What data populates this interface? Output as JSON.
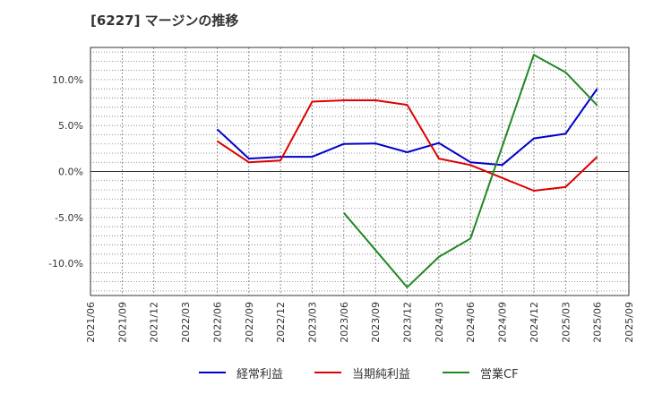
{
  "title": "[6227]  マージンの推移",
  "chart_data": {
    "type": "line",
    "title": "[6227]  マージンの推移",
    "xlabel": "",
    "ylabel": "",
    "x_ticks": [
      "2021/06",
      "2021/09",
      "2021/12",
      "2022/03",
      "2022/06",
      "2022/09",
      "2022/12",
      "2023/03",
      "2023/06",
      "2023/09",
      "2023/12",
      "2024/03",
      "2024/06",
      "2024/09",
      "2024/12",
      "2025/03",
      "2025/06",
      "2025/09"
    ],
    "y_ticks": [
      "10.0%",
      "5.0%",
      "0.0%",
      "-5.0%",
      "-10.0%"
    ],
    "y_tick_values": [
      10,
      5,
      0,
      -5,
      -10
    ],
    "ylim": [
      -13.5,
      13.5
    ],
    "grid": true,
    "legend_position": "bottom",
    "series": [
      {
        "name": "経常利益",
        "color": "#0000cc",
        "points": [
          [
            "2022/06",
            4.6
          ],
          [
            "2022/09",
            1.4
          ],
          [
            "2022/12",
            1.6
          ],
          [
            "2023/03",
            1.6
          ],
          [
            "2023/06",
            3.0
          ],
          [
            "2023/09",
            3.05
          ],
          [
            "2023/12",
            2.1
          ],
          [
            "2024/03",
            3.1
          ],
          [
            "2024/06",
            1.0
          ],
          [
            "2024/09",
            0.7
          ],
          [
            "2024/12",
            3.6
          ],
          [
            "2025/03",
            4.1
          ],
          [
            "2025/06",
            9.0
          ]
        ]
      },
      {
        "name": "当期純利益",
        "color": "#dd0000",
        "points": [
          [
            "2022/06",
            3.3
          ],
          [
            "2022/09",
            1.0
          ],
          [
            "2022/12",
            1.2
          ],
          [
            "2023/03",
            7.6
          ],
          [
            "2023/06",
            7.75
          ],
          [
            "2023/09",
            7.75
          ],
          [
            "2023/12",
            7.25
          ],
          [
            "2024/03",
            1.4
          ],
          [
            "2024/06",
            0.7
          ],
          [
            "2024/09",
            -0.7
          ],
          [
            "2024/12",
            -2.1
          ],
          [
            "2025/03",
            -1.7
          ],
          [
            "2025/06",
            1.6
          ]
        ]
      },
      {
        "name": "営業CF",
        "color": "#228822",
        "points": [
          [
            "2023/06",
            -4.5
          ],
          [
            "2023/12",
            -12.6
          ],
          [
            "2024/03",
            -9.3
          ],
          [
            "2024/06",
            -7.3
          ],
          [
            "2024/12",
            12.7
          ],
          [
            "2025/03",
            10.8
          ],
          [
            "2025/06",
            7.2
          ]
        ]
      }
    ]
  }
}
